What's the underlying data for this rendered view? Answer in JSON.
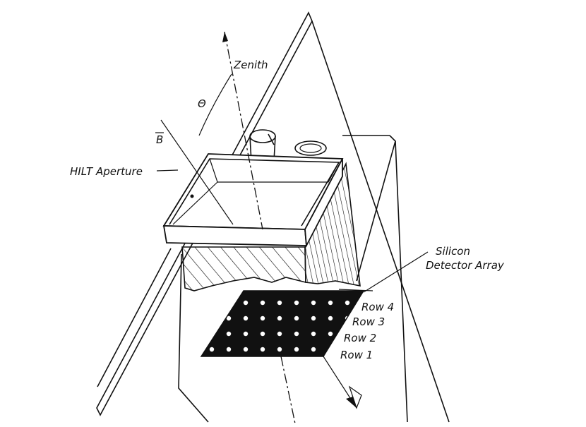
{
  "labels": {
    "zenith": "Zenith",
    "theta": "Θ",
    "b_vector": "B",
    "hilt_aperture": "HILT Aperture",
    "silicon_line1": "Silicon",
    "silicon_line2": "Detector Array",
    "row4": "Row 4",
    "row3": "Row 3",
    "row2": "Row 2",
    "row1": "Row 1"
  }
}
